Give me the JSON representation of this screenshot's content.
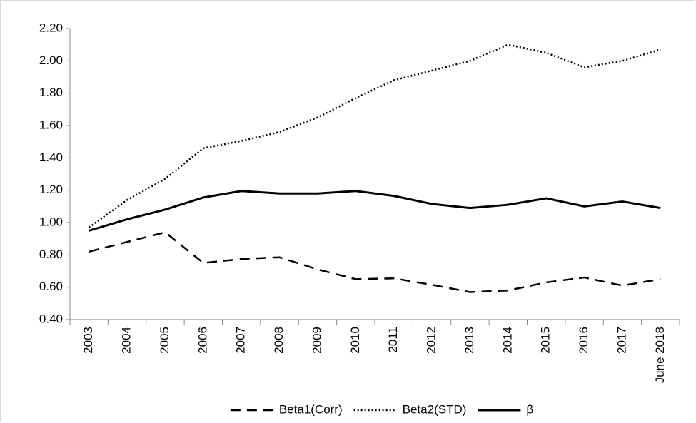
{
  "chart_data": {
    "type": "line",
    "categories": [
      "2003",
      "2004",
      "2005",
      "2006",
      "2007",
      "2008",
      "2009",
      "2010",
      "2011",
      "2012",
      "2013",
      "2014",
      "2015",
      "2016",
      "2017",
      "June 2018"
    ],
    "series": [
      {
        "name": "Beta1(Corr)",
        "color": "#000000",
        "line_style": "dashed",
        "values": [
          0.82,
          0.88,
          0.94,
          0.75,
          0.775,
          0.785,
          0.71,
          0.65,
          0.655,
          0.615,
          0.57,
          0.58,
          0.63,
          0.66,
          0.61,
          0.65
        ]
      },
      {
        "name": "Beta2(STD)",
        "color": "#000000",
        "line_style": "dotted",
        "values": [
          0.97,
          1.14,
          1.27,
          1.46,
          1.505,
          1.56,
          1.65,
          1.77,
          1.88,
          1.94,
          2.0,
          2.1,
          2.05,
          1.96,
          2.0,
          2.07
        ]
      },
      {
        "name": "β",
        "color": "#000000",
        "line_style": "solid",
        "values": [
          0.95,
          1.02,
          1.08,
          1.155,
          1.195,
          1.18,
          1.18,
          1.195,
          1.165,
          1.115,
          1.09,
          1.11,
          1.15,
          1.1,
          1.13,
          1.09
        ]
      }
    ],
    "ylim": [
      0.4,
      2.2
    ],
    "yticks": [
      {
        "value": 0.4,
        "label": "0.40"
      },
      {
        "value": 0.6,
        "label": "0.60"
      },
      {
        "value": 0.8,
        "label": "0.80"
      },
      {
        "value": 1.0,
        "label": "1.00"
      },
      {
        "value": 1.2,
        "label": "1.20"
      },
      {
        "value": 1.4,
        "label": "1.40"
      },
      {
        "value": 1.6,
        "label": "1.60"
      },
      {
        "value": 1.8,
        "label": "1.80"
      },
      {
        "value": 2.0,
        "label": "2.00"
      },
      {
        "value": 2.2,
        "label": "2.20"
      }
    ],
    "grid": false,
    "legend": "bottom"
  }
}
